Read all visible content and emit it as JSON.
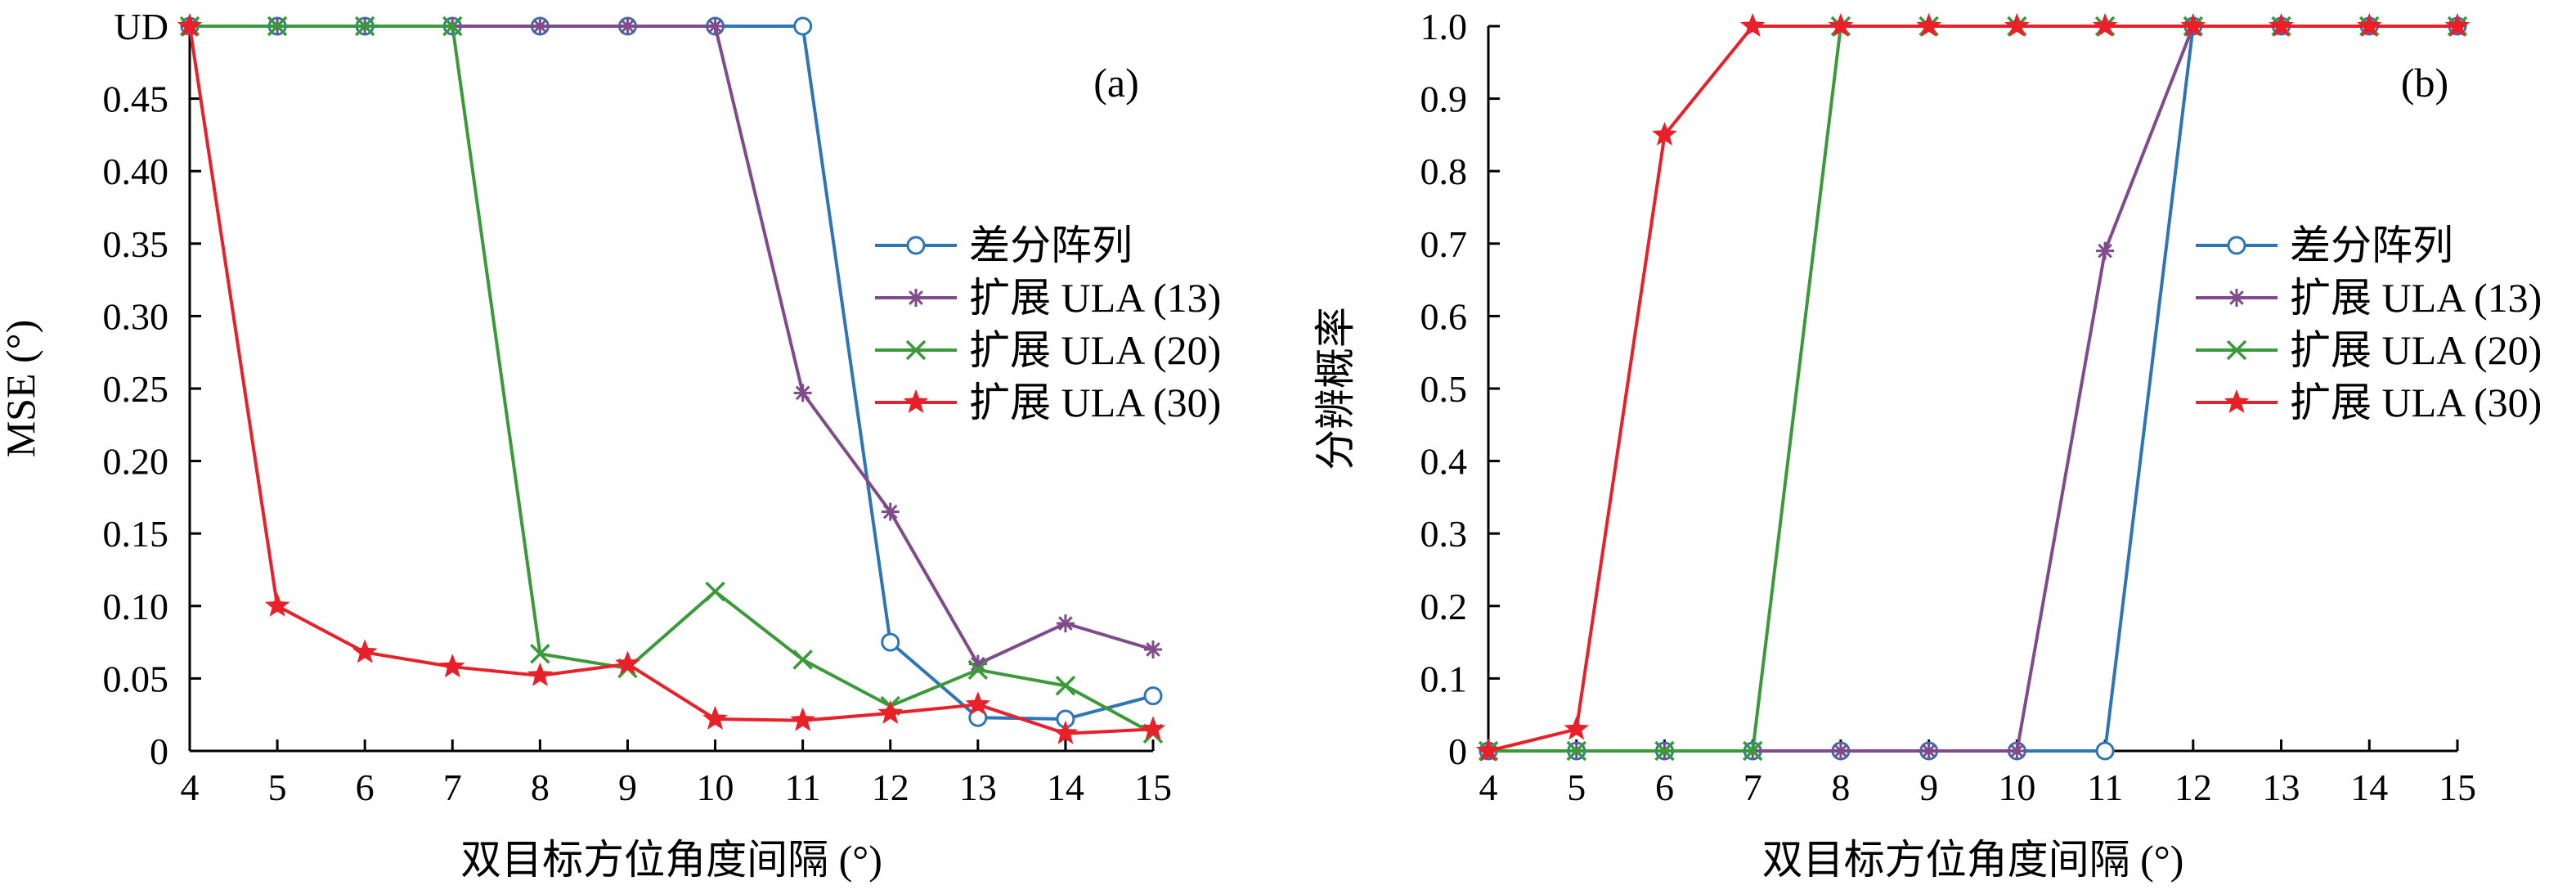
{
  "chart_data": [
    {
      "type": "line",
      "panel_label": "(a)",
      "xlabel": "双目标方位角度间隔 (°)",
      "ylabel": "MSE (°)",
      "x": [
        4,
        5,
        6,
        7,
        8,
        9,
        10,
        11,
        12,
        13,
        14,
        15
      ],
      "x_ticks": [
        "4",
        "5",
        "6",
        "7",
        "8",
        "9",
        "10",
        "11",
        "12",
        "13",
        "14",
        "15"
      ],
      "xlim": [
        4,
        15
      ],
      "ylim": [
        0,
        0.5
      ],
      "y_ticks": [
        "0",
        "0.05",
        "0.10",
        "0.15",
        "0.20",
        "0.25",
        "0.30",
        "0.35",
        "0.40",
        "0.45",
        "UD"
      ],
      "y_tick_values": [
        0,
        0.05,
        0.1,
        0.15,
        0.2,
        0.25,
        0.3,
        0.35,
        0.4,
        0.45,
        0.5
      ],
      "legend_position": "right",
      "grid": false,
      "series": [
        {
          "name": "差分阵列",
          "color": "#2e75b6",
          "marker": "circle",
          "values": [
            0.5,
            0.5,
            0.5,
            0.5,
            0.5,
            0.5,
            0.5,
            0.5,
            0.075,
            0.023,
            0.022,
            0.038
          ]
        },
        {
          "name": "扩展 ULA (13)",
          "color": "#7f4b8b",
          "marker": "asterisk",
          "values": [
            0.5,
            0.5,
            0.5,
            0.5,
            0.5,
            0.5,
            0.5,
            0.247,
            0.165,
            0.06,
            0.088,
            0.07
          ]
        },
        {
          "name": "扩展 ULA (20)",
          "color": "#3a9a3a",
          "marker": "x",
          "values": [
            0.5,
            0.5,
            0.5,
            0.5,
            0.067,
            0.057,
            0.11,
            0.063,
            0.031,
            0.056,
            0.045,
            0.012
          ]
        },
        {
          "name": "扩展 ULA (30)",
          "color": "#e8202a",
          "marker": "star",
          "values": [
            0.5,
            0.1,
            0.068,
            0.058,
            0.052,
            0.06,
            0.022,
            0.021,
            0.026,
            0.032,
            0.012,
            0.015
          ]
        }
      ]
    },
    {
      "type": "line",
      "panel_label": "(b)",
      "xlabel": "双目标方位角度间隔 (°)",
      "ylabel": "分辨概率",
      "x": [
        4,
        5,
        6,
        7,
        8,
        9,
        10,
        11,
        12,
        13,
        14,
        15
      ],
      "x_ticks": [
        "4",
        "5",
        "6",
        "7",
        "8",
        "9",
        "10",
        "11",
        "12",
        "13",
        "14",
        "15"
      ],
      "xlim": [
        4,
        15
      ],
      "ylim": [
        0,
        1.0
      ],
      "y_ticks": [
        "0",
        "0.1",
        "0.2",
        "0.3",
        "0.4",
        "0.5",
        "0.6",
        "0.7",
        "0.8",
        "0.9",
        "1.0"
      ],
      "y_tick_values": [
        0,
        0.1,
        0.2,
        0.3,
        0.4,
        0.5,
        0.6,
        0.7,
        0.8,
        0.9,
        1.0
      ],
      "legend_position": "right",
      "grid": false,
      "series": [
        {
          "name": "差分阵列",
          "color": "#2e75b6",
          "marker": "circle",
          "values": [
            0,
            0,
            0,
            0,
            0,
            0,
            0,
            0,
            1,
            1,
            1,
            1
          ]
        },
        {
          "name": "扩展 ULA (13)",
          "color": "#7f4b8b",
          "marker": "asterisk",
          "values": [
            0,
            0,
            0,
            0,
            0,
            0,
            0,
            0.69,
            1,
            1,
            1,
            1
          ]
        },
        {
          "name": "扩展 ULA (20)",
          "color": "#3a9a3a",
          "marker": "x",
          "values": [
            0,
            0,
            0,
            0,
            1,
            1,
            1,
            1,
            1,
            1,
            1,
            1
          ]
        },
        {
          "name": "扩展 ULA (30)",
          "color": "#e8202a",
          "marker": "star",
          "values": [
            0,
            0.03,
            0.85,
            1,
            1,
            1,
            1,
            1,
            1,
            1,
            1,
            1
          ]
        }
      ]
    }
  ]
}
